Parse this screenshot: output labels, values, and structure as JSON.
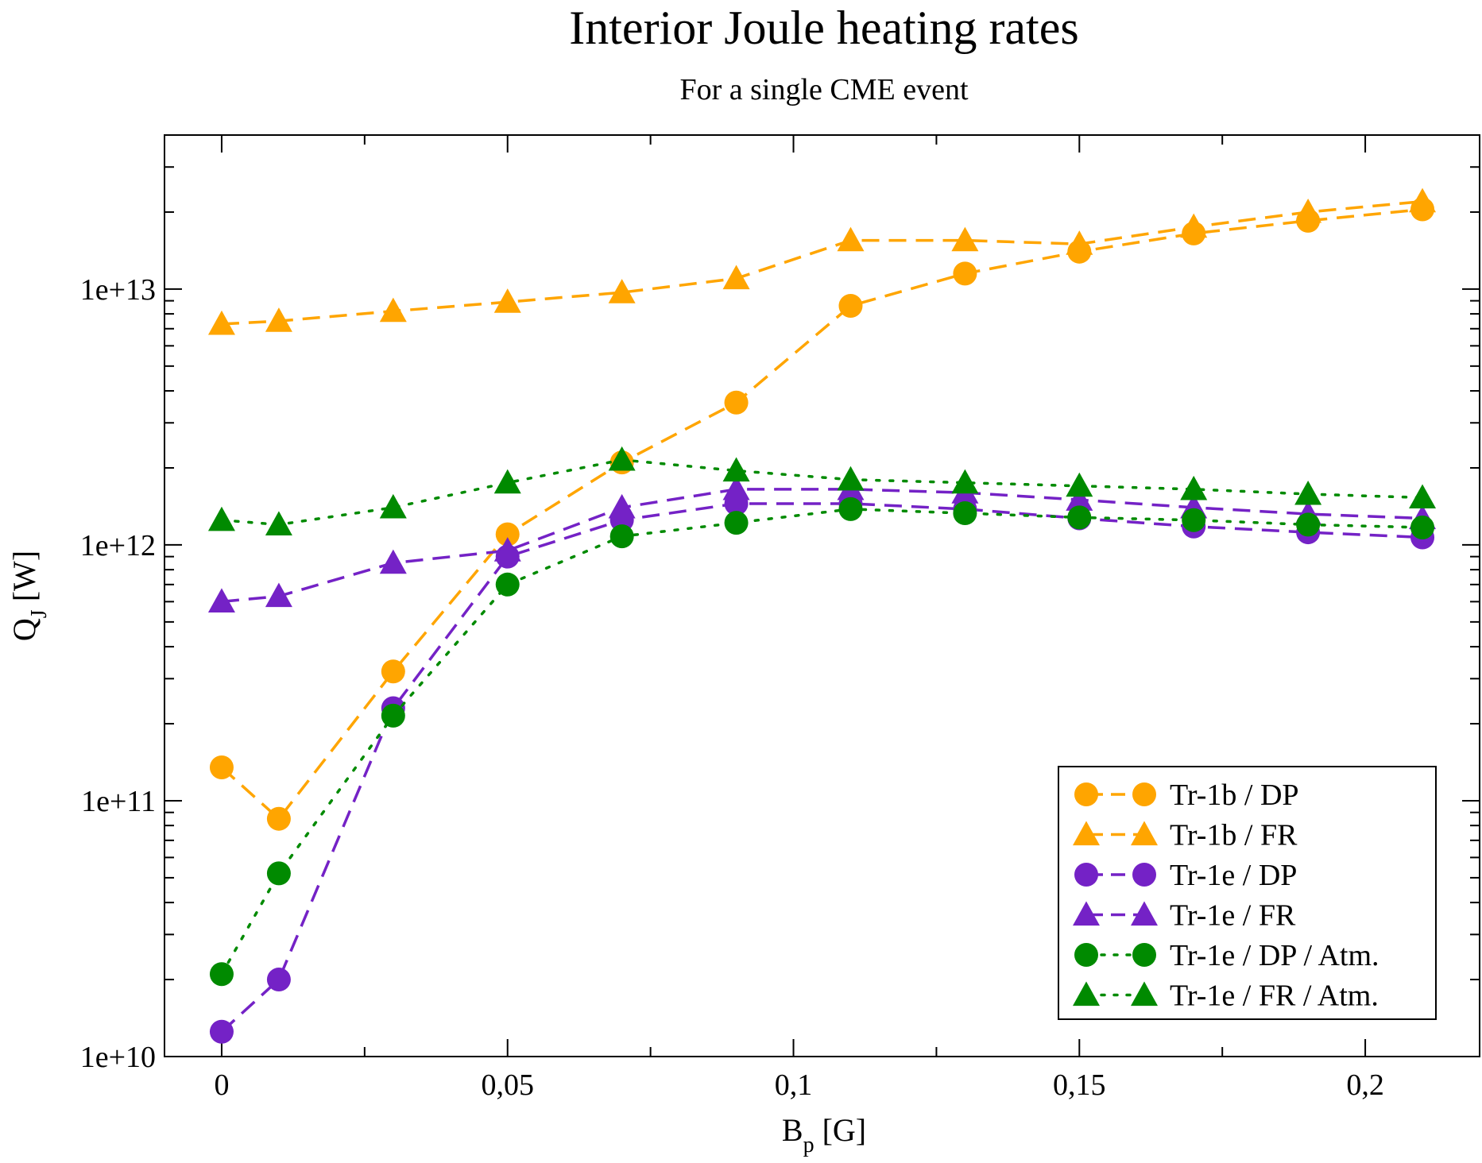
{
  "chart_data": {
    "type": "line",
    "title": "Interior Joule heating rates",
    "subtitle": "For a single CME event",
    "xlabel": "B",
    "xlabel_sub": "p",
    "xlabel_unit": "[G]",
    "ylabel": "Q",
    "ylabel_sub": "J",
    "ylabel_unit": "[W]",
    "xlim": [
      -0.01,
      0.22
    ],
    "ylim": [
      10000000000.0,
      40000000000000.0
    ],
    "yscale": "log",
    "x_ticks": [
      {
        "value": 0,
        "label": "0"
      },
      {
        "value": 0.05,
        "label": "0,05"
      },
      {
        "value": 0.1,
        "label": "0,1"
      },
      {
        "value": 0.15,
        "label": "0,15"
      },
      {
        "value": 0.2,
        "label": "0,2"
      }
    ],
    "y_ticks": [
      {
        "value": 10000000000.0,
        "label": "1e+10"
      },
      {
        "value": 100000000000.0,
        "label": "1e+11"
      },
      {
        "value": 1000000000000.0,
        "label": "1e+12"
      },
      {
        "value": 10000000000000.0,
        "label": "1e+13"
      }
    ],
    "legend_position": "bottom-right",
    "x": [
      0,
      0.01,
      0.03,
      0.05,
      0.07,
      0.09,
      0.11,
      0.13,
      0.15,
      0.17,
      0.19,
      0.21
    ],
    "series": [
      {
        "name": "Tr-1b / DP",
        "color": "#FFA500",
        "marker": "circle",
        "line": "dashed",
        "values": [
          135000000000.0,
          85000000000.0,
          320000000000.0,
          1100000000000.0,
          2100000000000.0,
          3600000000000.0,
          8600000000000.0,
          11500000000000.0,
          14000000000000.0,
          16500000000000.0,
          18500000000000.0,
          20500000000000.0
        ]
      },
      {
        "name": "Tr-1b / FR",
        "color": "#FFA500",
        "marker": "triangle",
        "line": "dashed",
        "values": [
          7300000000000.0,
          7500000000000.0,
          8200000000000.0,
          8900000000000.0,
          9700000000000.0,
          11000000000000.0,
          15500000000000.0,
          15500000000000.0,
          15000000000000.0,
          17500000000000.0,
          20000000000000.0,
          22000000000000.0
        ]
      },
      {
        "name": "Tr-1e / DP",
        "color": "#7422C6",
        "marker": "circle",
        "line": "dashed",
        "values": [
          12500000000.0,
          20000000000.0,
          230000000000.0,
          900000000000.0,
          1250000000000.0,
          1450000000000.0,
          1450000000000.0,
          1380000000000.0,
          1270000000000.0,
          1180000000000.0,
          1120000000000.0,
          1070000000000.0
        ]
      },
      {
        "name": "Tr-1e / FR",
        "color": "#7422C6",
        "marker": "triangle",
        "line": "dashed",
        "values": [
          600000000000.0,
          630000000000.0,
          850000000000.0,
          950000000000.0,
          1400000000000.0,
          1650000000000.0,
          1650000000000.0,
          1600000000000.0,
          1500000000000.0,
          1400000000000.0,
          1320000000000.0,
          1270000000000.0
        ]
      },
      {
        "name": "Tr-1e / DP / Atm.",
        "color": "#008A00",
        "marker": "circle",
        "line": "dotted",
        "values": [
          21000000000.0,
          52000000000.0,
          215000000000.0,
          700000000000.0,
          1080000000000.0,
          1220000000000.0,
          1380000000000.0,
          1330000000000.0,
          1280000000000.0,
          1250000000000.0,
          1200000000000.0,
          1170000000000.0
        ]
      },
      {
        "name": "Tr-1e / FR / Atm.",
        "color": "#008A00",
        "marker": "triangle",
        "line": "dotted",
        "values": [
          1250000000000.0,
          1200000000000.0,
          1400000000000.0,
          1750000000000.0,
          2150000000000.0,
          1950000000000.0,
          1800000000000.0,
          1750000000000.0,
          1700000000000.0,
          1650000000000.0,
          1580000000000.0,
          1530000000000.0
        ]
      }
    ]
  }
}
